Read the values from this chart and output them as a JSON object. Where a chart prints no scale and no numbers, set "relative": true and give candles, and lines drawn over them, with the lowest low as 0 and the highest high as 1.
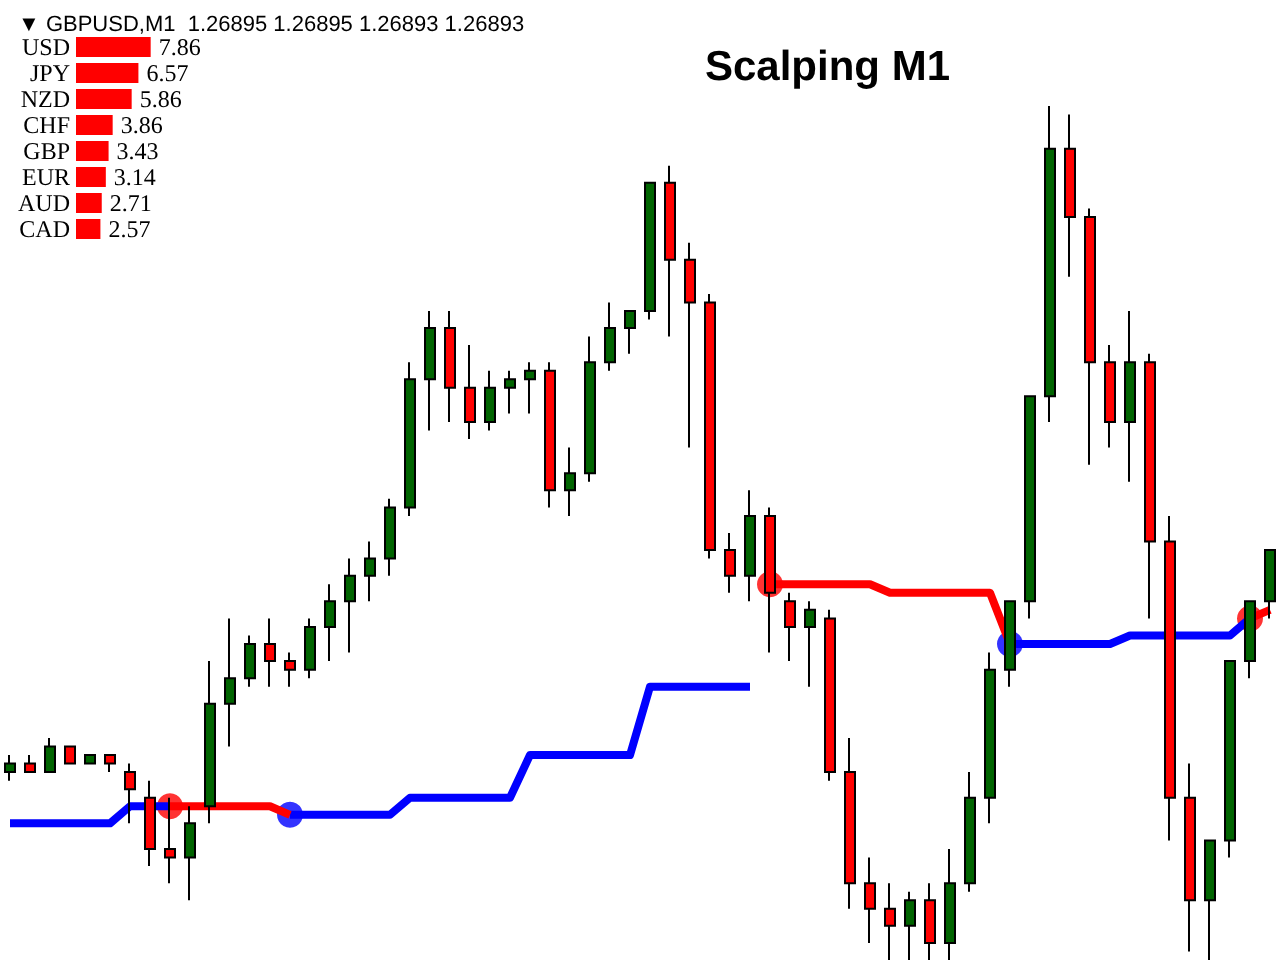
{
  "chart_data": [
    {
      "type": "candlestick",
      "title": "Scalping M1",
      "subtitle": "▼ GBPUSD,M1  1.26895 1.26895 1.26893 1.26893",
      "relative": true,
      "tick_labels": false,
      "grid": false,
      "categories": [
        null,
        null,
        null,
        null,
        null,
        null,
        null,
        null,
        null,
        null,
        null,
        null,
        null,
        null,
        null,
        null,
        null,
        null,
        null,
        null,
        null,
        null,
        null,
        null,
        null,
        null,
        null,
        null,
        null,
        null,
        null,
        null,
        null,
        null,
        null,
        null,
        null,
        null,
        null,
        null,
        null,
        null,
        null,
        null,
        null,
        null,
        null,
        null,
        null,
        null,
        null,
        null,
        null,
        null,
        null,
        null,
        null,
        null,
        null,
        null,
        null,
        null,
        null,
        null
      ],
      "ohlc": [
        [
          0.22,
          0.24,
          0.21,
          0.23
        ],
        [
          0.23,
          0.24,
          0.22,
          0.22
        ],
        [
          0.22,
          0.26,
          0.22,
          0.25
        ],
        [
          0.25,
          0.25,
          0.23,
          0.23
        ],
        [
          0.23,
          0.24,
          0.23,
          0.24
        ],
        [
          0.24,
          0.24,
          0.22,
          0.23
        ],
        [
          0.22,
          0.23,
          0.16,
          0.2
        ],
        [
          0.19,
          0.21,
          0.11,
          0.13
        ],
        [
          0.13,
          0.19,
          0.09,
          0.12
        ],
        [
          0.12,
          0.18,
          0.07,
          0.16
        ],
        [
          0.18,
          0.35,
          0.16,
          0.3
        ],
        [
          0.3,
          0.4,
          0.25,
          0.33
        ],
        [
          0.33,
          0.38,
          0.32,
          0.37
        ],
        [
          0.37,
          0.4,
          0.32,
          0.35
        ],
        [
          0.35,
          0.36,
          0.32,
          0.34
        ],
        [
          0.34,
          0.4,
          0.33,
          0.39
        ],
        [
          0.39,
          0.44,
          0.35,
          0.42
        ],
        [
          0.42,
          0.47,
          0.36,
          0.45
        ],
        [
          0.45,
          0.49,
          0.42,
          0.47
        ],
        [
          0.47,
          0.54,
          0.45,
          0.53
        ],
        [
          0.53,
          0.7,
          0.52,
          0.68
        ],
        [
          0.68,
          0.76,
          0.62,
          0.74
        ],
        [
          0.74,
          0.76,
          0.63,
          0.67
        ],
        [
          0.67,
          0.72,
          0.61,
          0.63
        ],
        [
          0.63,
          0.69,
          0.62,
          0.67
        ],
        [
          0.67,
          0.69,
          0.64,
          0.68
        ],
        [
          0.68,
          0.7,
          0.64,
          0.69
        ],
        [
          0.69,
          0.7,
          0.53,
          0.55
        ],
        [
          0.55,
          0.6,
          0.52,
          0.57
        ],
        [
          0.57,
          0.73,
          0.56,
          0.7
        ],
        [
          0.7,
          0.77,
          0.69,
          0.74
        ],
        [
          0.74,
          0.76,
          0.71,
          0.76
        ],
        [
          0.76,
          0.91,
          0.75,
          0.91
        ],
        [
          0.91,
          0.93,
          0.73,
          0.82
        ],
        [
          0.82,
          0.84,
          0.6,
          0.77
        ],
        [
          0.77,
          0.78,
          0.47,
          0.48
        ],
        [
          0.48,
          0.5,
          0.43,
          0.45
        ],
        [
          0.45,
          0.55,
          0.42,
          0.52
        ],
        [
          0.52,
          0.53,
          0.36,
          0.43
        ],
        [
          0.42,
          0.43,
          0.35,
          0.39
        ],
        [
          0.39,
          0.42,
          0.32,
          0.41
        ],
        [
          0.4,
          0.41,
          0.21,
          0.22
        ],
        [
          0.22,
          0.26,
          0.06,
          0.09
        ],
        [
          0.09,
          0.12,
          0.02,
          0.06
        ],
        [
          0.06,
          0.09,
          0.0,
          0.04
        ],
        [
          0.04,
          0.08,
          0.0,
          0.07
        ],
        [
          0.07,
          0.09,
          0.0,
          0.02
        ],
        [
          0.02,
          0.13,
          0.0,
          0.09
        ],
        [
          0.09,
          0.22,
          0.08,
          0.19
        ],
        [
          0.19,
          0.36,
          0.16,
          0.34
        ],
        [
          0.34,
          0.42,
          0.32,
          0.42
        ],
        [
          0.42,
          0.66,
          0.4,
          0.66
        ],
        [
          0.66,
          1.0,
          0.63,
          0.95
        ],
        [
          0.95,
          0.99,
          0.8,
          0.87
        ],
        [
          0.87,
          0.88,
          0.58,
          0.7
        ],
        [
          0.7,
          0.72,
          0.6,
          0.63
        ],
        [
          0.63,
          0.76,
          0.56,
          0.7
        ],
        [
          0.7,
          0.71,
          0.4,
          0.49
        ],
        [
          0.49,
          0.52,
          0.14,
          0.19
        ],
        [
          0.19,
          0.23,
          0.01,
          0.07
        ],
        [
          0.07,
          0.14,
          0.0,
          0.14
        ],
        [
          0.14,
          0.35,
          0.12,
          0.35
        ],
        [
          0.35,
          0.42,
          0.33,
          0.42
        ],
        [
          0.42,
          0.48,
          0.4,
          0.48
        ]
      ],
      "colors": [
        "#006400",
        "#ff0000",
        "#006400",
        "#ff0000",
        "#006400",
        "#ff0000",
        "#ff0000",
        "#ff0000",
        "#ff0000",
        "#006400",
        "#006400",
        "#006400",
        "#006400",
        "#ff0000",
        "#ff0000",
        "#006400",
        "#006400",
        "#006400",
        "#006400",
        "#006400",
        "#006400",
        "#006400",
        "#ff0000",
        "#ff0000",
        "#006400",
        "#006400",
        "#006400",
        "#ff0000",
        "#006400",
        "#006400",
        "#006400",
        "#006400",
        "#006400",
        "#ff0000",
        "#ff0000",
        "#ff0000",
        "#ff0000",
        "#006400",
        "#ff0000",
        "#ff0000",
        "#006400",
        "#ff0000",
        "#ff0000",
        "#ff0000",
        "#ff0000",
        "#006400",
        "#ff0000",
        "#006400",
        "#006400",
        "#006400",
        "#006400",
        "#006400",
        "#006400",
        "#ff0000",
        "#ff0000",
        "#ff0000",
        "#006400",
        "#ff0000",
        "#ff0000",
        "#ff0000",
        "#006400",
        "#006400",
        "#006400",
        "#006400"
      ],
      "series": [
        {
          "type": "line",
          "color": "#0000ff",
          "values": [
            0.16,
            0.16,
            0.16,
            0.16,
            0.16,
            0.16,
            0.18,
            0.18,
            0.18,
            null,
            null,
            null,
            null,
            null,
            0.17,
            0.17,
            0.17,
            0.17,
            0.17,
            0.17,
            0.19,
            0.19,
            0.19,
            0.19,
            0.19,
            0.19,
            0.24,
            0.24,
            0.24,
            0.24,
            0.24,
            0.24,
            0.32,
            0.32,
            0.32,
            0.32,
            0.32,
            0.32,
            null,
            null,
            null,
            null,
            null,
            null,
            null,
            null,
            null,
            null,
            null,
            null,
            0.37,
            0.37,
            0.37,
            0.37,
            0.37,
            0.37,
            0.38,
            0.38,
            0.38,
            0.38,
            0.38,
            0.38,
            0.4,
            null
          ]
        },
        {
          "type": "line",
          "color": "#ff0000",
          "values": [
            null,
            null,
            null,
            null,
            null,
            null,
            null,
            null,
            0.18,
            0.18,
            0.18,
            0.18,
            0.18,
            0.18,
            0.17,
            null,
            null,
            null,
            null,
            null,
            null,
            null,
            null,
            null,
            null,
            null,
            null,
            null,
            null,
            null,
            null,
            null,
            null,
            null,
            null,
            null,
            null,
            null,
            0.44,
            0.44,
            0.44,
            0.44,
            0.44,
            0.44,
            0.43,
            0.43,
            0.43,
            0.43,
            0.43,
            0.43,
            0.37,
            null,
            null,
            null,
            null,
            null,
            null,
            null,
            null,
            null,
            null,
            null,
            0.4,
            0.41
          ]
        },
        {
          "type": "scatter",
          "color": "#ff0000",
          "marker": "circle",
          "values": [
            null,
            null,
            null,
            null,
            null,
            null,
            null,
            null,
            0.18,
            null,
            null,
            null,
            null,
            null,
            null,
            null,
            null,
            null,
            null,
            null,
            null,
            null,
            null,
            null,
            null,
            null,
            null,
            null,
            null,
            null,
            null,
            null,
            null,
            null,
            null,
            null,
            null,
            null,
            0.44,
            null,
            null,
            null,
            null,
            null,
            null,
            null,
            null,
            null,
            null,
            null,
            null,
            null,
            null,
            null,
            null,
            null,
            null,
            null,
            null,
            null,
            null,
            null,
            0.4,
            null
          ]
        },
        {
          "type": "scatter",
          "color": "#0000ff",
          "marker": "circle",
          "values": [
            null,
            null,
            null,
            null,
            null,
            null,
            null,
            null,
            null,
            null,
            null,
            null,
            null,
            null,
            0.17,
            null,
            null,
            null,
            null,
            null,
            null,
            null,
            null,
            null,
            null,
            null,
            null,
            null,
            null,
            null,
            null,
            null,
            null,
            null,
            null,
            null,
            null,
            null,
            null,
            null,
            null,
            null,
            null,
            null,
            null,
            null,
            null,
            null,
            null,
            null,
            0.37,
            null,
            null,
            null,
            null,
            null,
            null,
            null,
            null,
            null,
            null,
            null,
            null,
            null
          ]
        }
      ]
    },
    {
      "type": "bar",
      "orientation": "horizontal",
      "tick_labels": "y",
      "data_labels": true,
      "color": "#ff0000",
      "categories": [
        "USD",
        "JPY",
        "NZD",
        "CHF",
        "GBP",
        "EUR",
        "AUD",
        "CAD"
      ],
      "values": [
        7.86,
        6.57,
        5.86,
        3.86,
        3.43,
        3.14,
        2.71,
        2.57
      ]
    }
  ]
}
